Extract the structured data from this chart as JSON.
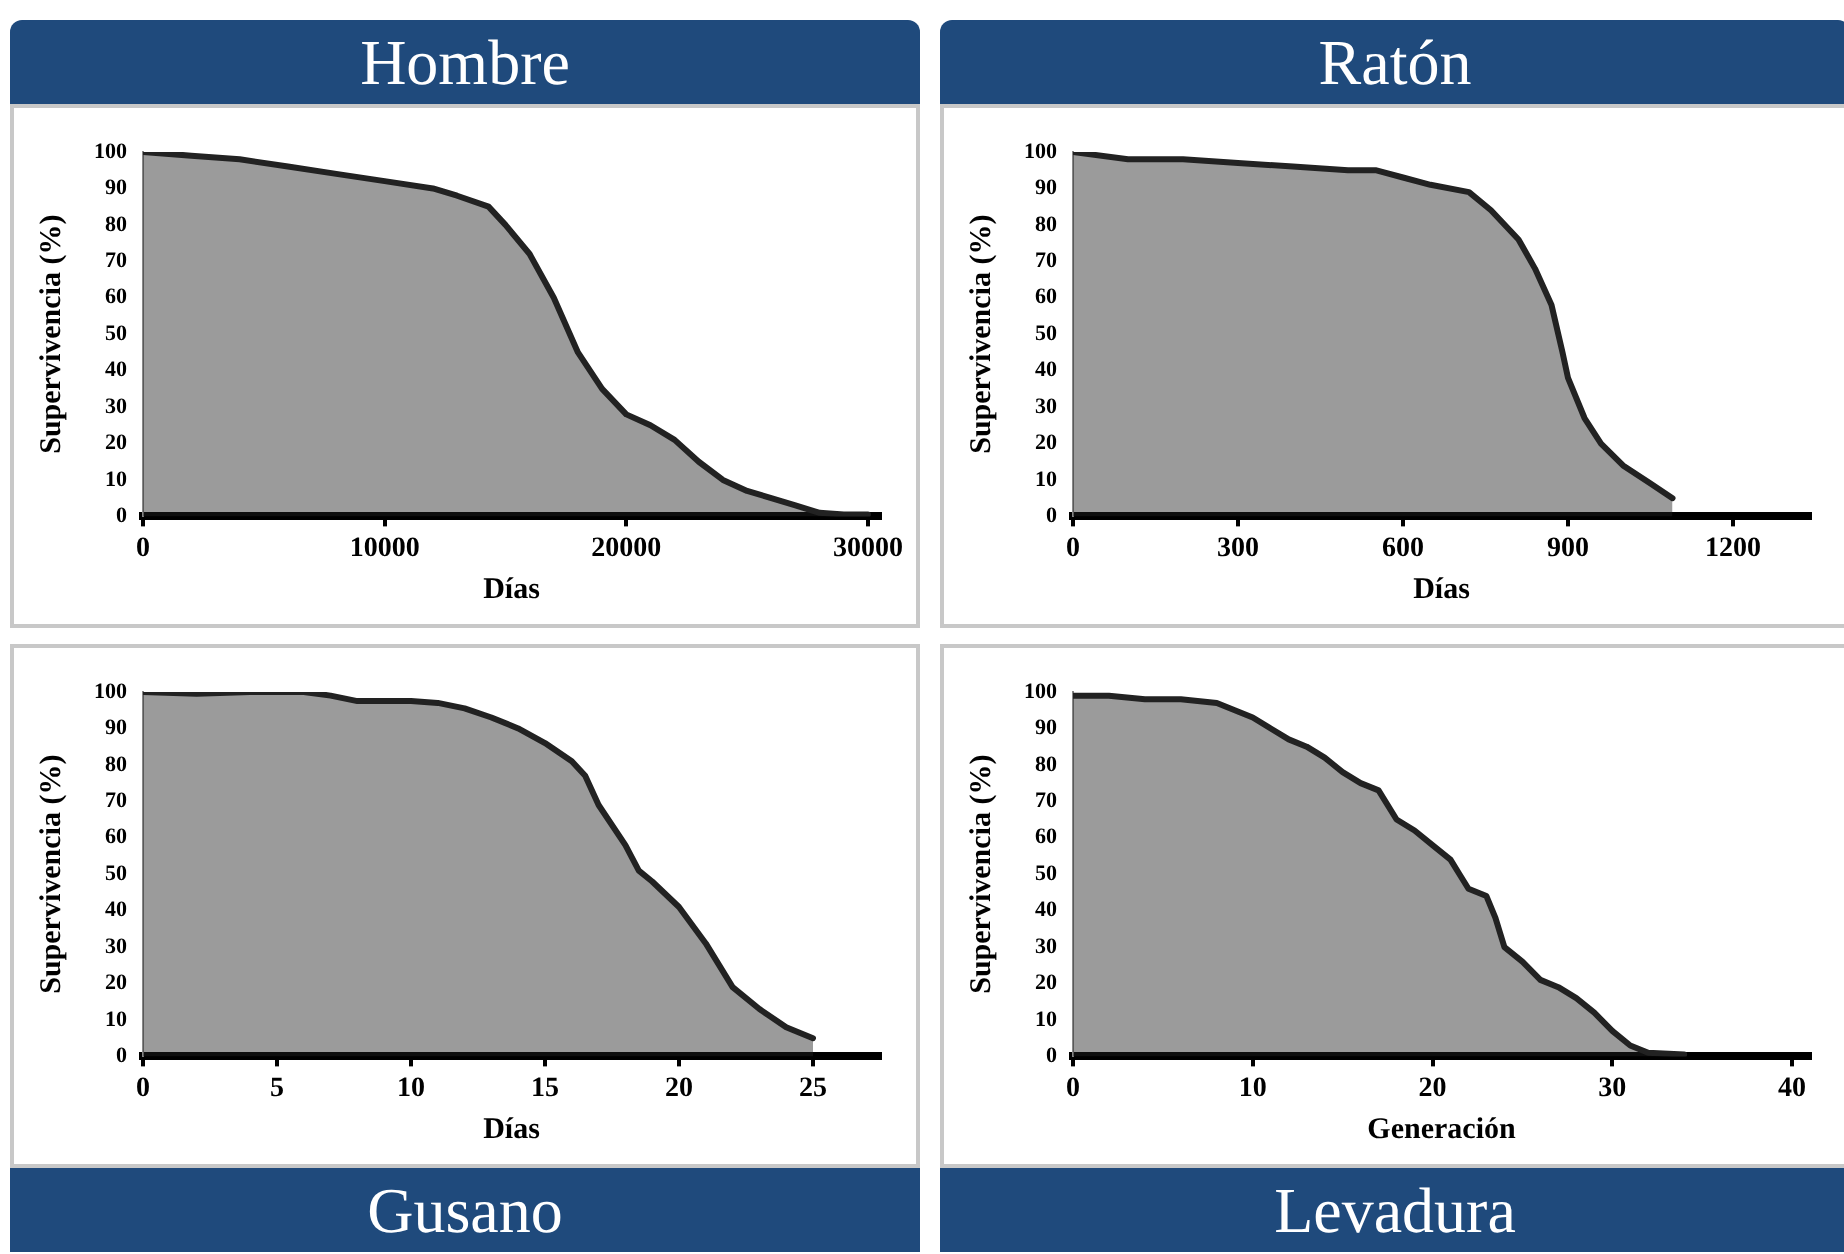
{
  "chart_data": [
    {
      "type": "area",
      "title": "Hombre",
      "xlabel": "Días",
      "ylabel": "Supervivencia (%)",
      "xlim": [
        0,
        30500
      ],
      "xticks": [
        0,
        10000,
        20000,
        30000
      ],
      "ylim": [
        0,
        100
      ],
      "yticks": [
        0,
        10,
        20,
        30,
        40,
        50,
        60,
        70,
        80,
        90,
        100
      ],
      "grid": false,
      "legend": false,
      "marker": "none",
      "line_style": "solid",
      "series": [
        {
          "color": "#222222",
          "x": [
            0,
            2000,
            4000,
            6000,
            8000,
            10000,
            12000,
            13000,
            14300,
            15000,
            16000,
            17000,
            18000,
            19000,
            20000,
            21000,
            22000,
            23000,
            24000,
            25000,
            26000,
            27000,
            28000,
            29000,
            30000
          ],
          "values": [
            100,
            99,
            98,
            96,
            94,
            92,
            90,
            88,
            85,
            80,
            72,
            60,
            45,
            35,
            28,
            25,
            21,
            15,
            10,
            7,
            5,
            3,
            1,
            0.5,
            0.5
          ]
        }
      ]
    },
    {
      "type": "area",
      "title": "Ratón",
      "xlabel": "Días",
      "ylabel": "Supervivencia (%)",
      "xlim": [
        0,
        1340
      ],
      "xticks": [
        0,
        300,
        600,
        900,
        1200
      ],
      "ylim": [
        0,
        100
      ],
      "yticks": [
        0,
        10,
        20,
        30,
        40,
        50,
        60,
        70,
        80,
        90,
        100
      ],
      "grid": false,
      "legend": false,
      "marker": "none",
      "line_style": "solid",
      "series": [
        {
          "color": "#222222",
          "x": [
            0,
            100,
            200,
            300,
            400,
            500,
            550,
            600,
            650,
            720,
            760,
            810,
            840,
            870,
            890,
            900,
            930,
            960,
            1000,
            1050,
            1090
          ],
          "values": [
            100,
            98,
            98,
            97,
            96,
            95,
            95,
            93,
            91,
            89,
            84,
            76,
            68,
            58,
            45,
            38,
            27,
            20,
            14,
            9,
            5
          ]
        }
      ]
    },
    {
      "type": "area",
      "title": "Gusano",
      "xlabel": "Días",
      "ylabel": "Supervivencia (%)",
      "xlim": [
        0,
        27.5
      ],
      "xticks": [
        0,
        5,
        10,
        15,
        20,
        25
      ],
      "ylim": [
        0,
        100
      ],
      "yticks": [
        0,
        10,
        20,
        30,
        40,
        50,
        60,
        70,
        80,
        90,
        100
      ],
      "grid": false,
      "legend": false,
      "marker": "none",
      "line_style": "solid",
      "series": [
        {
          "color": "#222222",
          "x": [
            0,
            2,
            4,
            6,
            7,
            8,
            10,
            11,
            12,
            13,
            14,
            15,
            16,
            16.5,
            17,
            18,
            18.5,
            19,
            20,
            21,
            22,
            23,
            24,
            25
          ],
          "values": [
            100,
            99.5,
            100,
            100,
            99,
            97.5,
            97.5,
            97,
            95.5,
            93,
            90,
            86,
            81,
            77,
            69,
            58,
            51,
            48,
            41,
            31,
            19,
            13,
            8,
            5
          ]
        }
      ]
    },
    {
      "type": "area",
      "title": "Levadura",
      "xlabel": "Generación",
      "ylabel": "Supervivencia (%)",
      "xlim": [
        0,
        41
      ],
      "xticks": [
        0,
        10,
        20,
        30,
        40
      ],
      "ylim": [
        0,
        100
      ],
      "yticks": [
        0,
        10,
        20,
        30,
        40,
        50,
        60,
        70,
        80,
        90,
        100
      ],
      "grid": false,
      "legend": false,
      "marker": "none",
      "line_style": "solid",
      "series": [
        {
          "color": "#222222",
          "x": [
            0,
            2,
            4,
            6,
            8,
            9,
            10,
            11,
            12,
            13,
            14,
            15,
            16,
            17,
            18,
            19,
            20,
            21,
            21.5,
            22,
            23,
            23.5,
            24,
            25,
            26,
            27,
            28,
            29,
            30,
            31,
            32,
            34
          ],
          "values": [
            99,
            99,
            98,
            98,
            97,
            95,
            93,
            90,
            87,
            85,
            82,
            78,
            75,
            73,
            65,
            62,
            58,
            54,
            50,
            46,
            44,
            38,
            30,
            26,
            21,
            19,
            16,
            12,
            7,
            3,
            1,
            0.5
          ]
        }
      ]
    }
  ]
}
